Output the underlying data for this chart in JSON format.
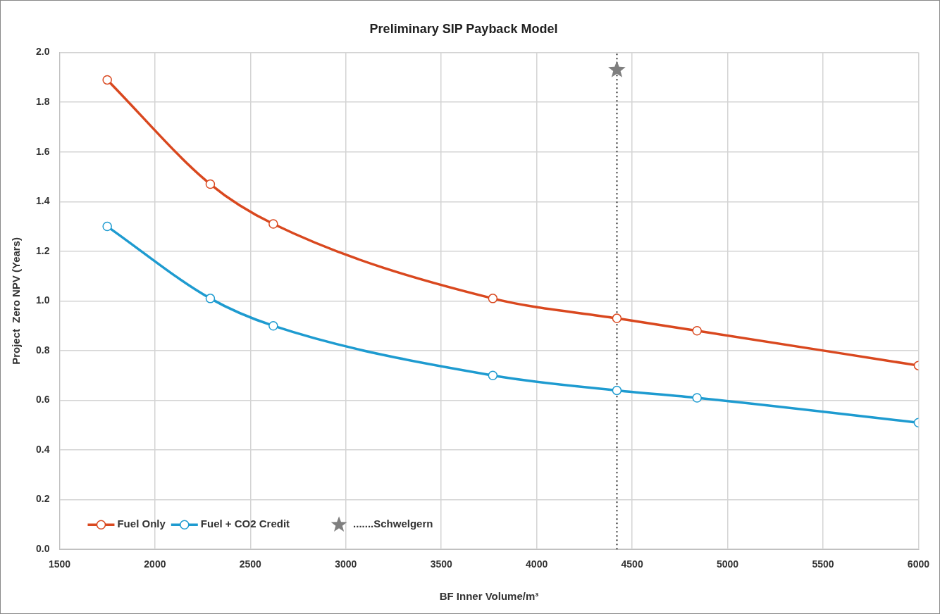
{
  "chart_data": {
    "type": "line",
    "title": "Preliminary SIP Payback Model",
    "xlabel": "BF Inner Volume/m³",
    "ylabel": "Project  Zero NPV (Years)",
    "x": [
      1750,
      2290,
      2620,
      3770,
      4420,
      4840,
      6000
    ],
    "series": [
      {
        "name": "Fuel Only",
        "color": "#d9481f",
        "values": [
          1.89,
          1.47,
          1.31,
          1.01,
          0.93,
          0.88,
          0.74
        ]
      },
      {
        "name": "Fuel + CO2 Credit",
        "color": "#1e9bd0",
        "values": [
          1.3,
          1.01,
          0.9,
          0.7,
          0.64,
          0.61,
          0.51
        ]
      },
      {
        "name": ".......Schwelgern",
        "type": "scatter",
        "marker": "star",
        "color": "#7f7f7f",
        "x": [
          4420
        ],
        "values": [
          1.93
        ]
      }
    ],
    "xlim": [
      1500,
      6000
    ],
    "xticks": [
      1500,
      2000,
      2500,
      3000,
      3500,
      4000,
      4500,
      5000,
      5500,
      6000
    ],
    "ylim": [
      0,
      2
    ],
    "yticks": [
      {
        "value": 0,
        "label": "0.0"
      },
      {
        "value": 0.2,
        "label": "0.2"
      },
      {
        "value": 0.4,
        "label": "0.4"
      },
      {
        "value": 0.6,
        "label": "0.6"
      },
      {
        "value": 0.8,
        "label": "0.8"
      },
      {
        "value": 1,
        "label": "1.0"
      },
      {
        "value": 1.2,
        "label": "1.2"
      },
      {
        "value": 1.4,
        "label": "1.4"
      },
      {
        "value": 1.6,
        "label": "1.6"
      },
      {
        "value": 1.8,
        "label": "1.8"
      },
      {
        "value": 2,
        "label": "2.0"
      }
    ],
    "ref_lines": [
      {
        "axis": "x",
        "value": 4420,
        "color": "#595959",
        "line_style": "dotted"
      }
    ],
    "grid": true,
    "legend": "bottom left",
    "marker": "circle",
    "line_style": "solid"
  }
}
